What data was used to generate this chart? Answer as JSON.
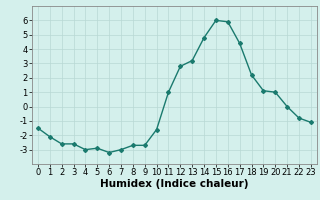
{
  "x": [
    0,
    1,
    2,
    3,
    4,
    5,
    6,
    7,
    8,
    9,
    10,
    11,
    12,
    13,
    14,
    15,
    16,
    17,
    18,
    19,
    20,
    21,
    22,
    23
  ],
  "y": [
    -1.5,
    -2.1,
    -2.6,
    -2.6,
    -3.0,
    -2.9,
    -3.2,
    -3.0,
    -2.7,
    -2.7,
    -1.6,
    1.0,
    2.8,
    3.2,
    4.8,
    6.0,
    5.9,
    4.4,
    2.2,
    1.1,
    1.0,
    0.0,
    -0.8,
    -1.1
  ],
  "line_color": "#1a7a6e",
  "marker": "D",
  "marker_size": 2.0,
  "linewidth": 1.0,
  "xlabel": "Humidex (Indice chaleur)",
  "ylim": [
    -4,
    7
  ],
  "xlim": [
    -0.5,
    23.5
  ],
  "yticks": [
    -3,
    -2,
    -1,
    0,
    1,
    2,
    3,
    4,
    5,
    6
  ],
  "xticks": [
    0,
    1,
    2,
    3,
    4,
    5,
    6,
    7,
    8,
    9,
    10,
    11,
    12,
    13,
    14,
    15,
    16,
    17,
    18,
    19,
    20,
    21,
    22,
    23
  ],
  "background_color": "#d4f0ec",
  "grid_color": "#b8d8d4",
  "tick_label_fontsize": 6.0,
  "xlabel_fontsize": 7.5,
  "xlabel_fontweight": "bold"
}
